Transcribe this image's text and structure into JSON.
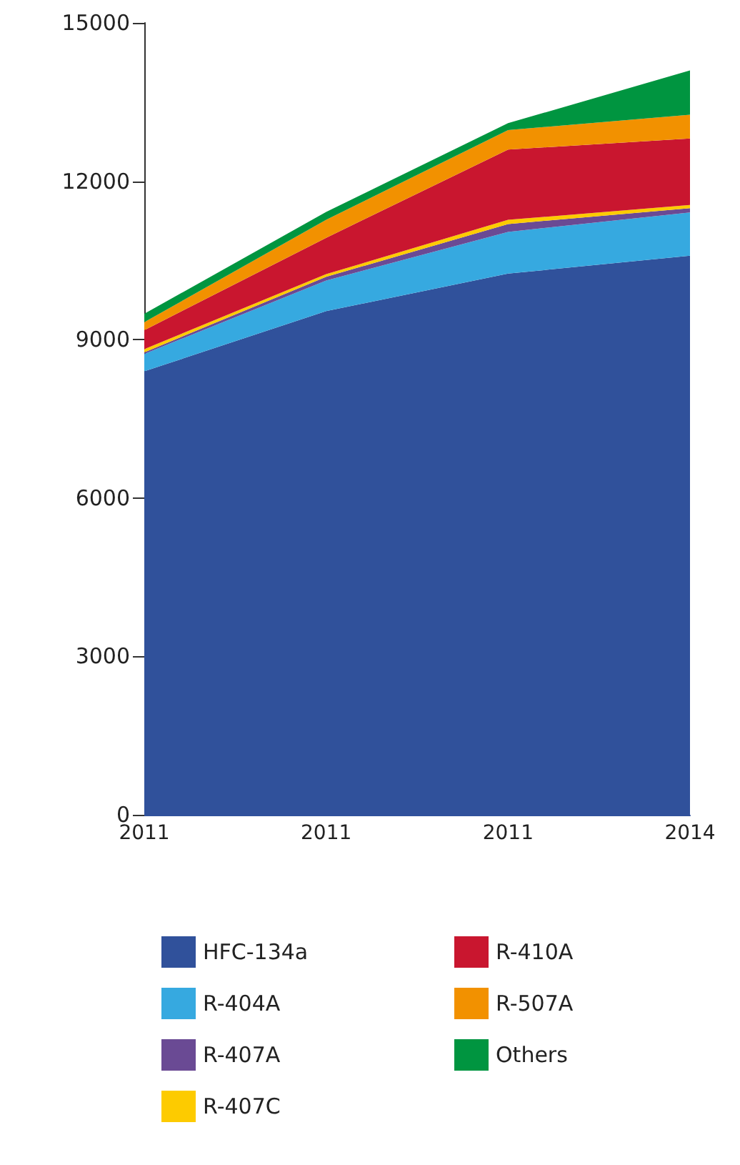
{
  "chart_data": {
    "type": "area",
    "stacked": true,
    "categories": [
      "2011",
      "2011",
      "2011",
      "2014"
    ],
    "ylim": [
      0,
      15000
    ],
    "yticks": [
      0,
      3000,
      6000,
      9000,
      12000,
      15000
    ],
    "grid": false,
    "legend": "bottom",
    "marker": "none",
    "series": [
      {
        "name": "HFC-134a",
        "color": "#30519b",
        "values": [
          8400,
          9540,
          10250,
          10590
        ]
      },
      {
        "name": "R-404A",
        "color": "#36a9e0",
        "values": [
          330,
          580,
          790,
          820
        ]
      },
      {
        "name": "R-407A",
        "color": "#6a4a94",
        "values": [
          30,
          70,
          150,
          80
        ]
      },
      {
        "name": "R-407C",
        "color": "#fdcb00",
        "values": [
          60,
          50,
          80,
          60
        ]
      },
      {
        "name": "R-410A",
        "color": "#c9162f",
        "values": [
          360,
          690,
          1330,
          1260
        ]
      },
      {
        "name": "R-507A",
        "color": "#f29100",
        "values": [
          150,
          340,
          370,
          450
        ]
      },
      {
        "name": "Others",
        "color": "#009540",
        "values": [
          160,
          150,
          130,
          840
        ]
      }
    ]
  }
}
